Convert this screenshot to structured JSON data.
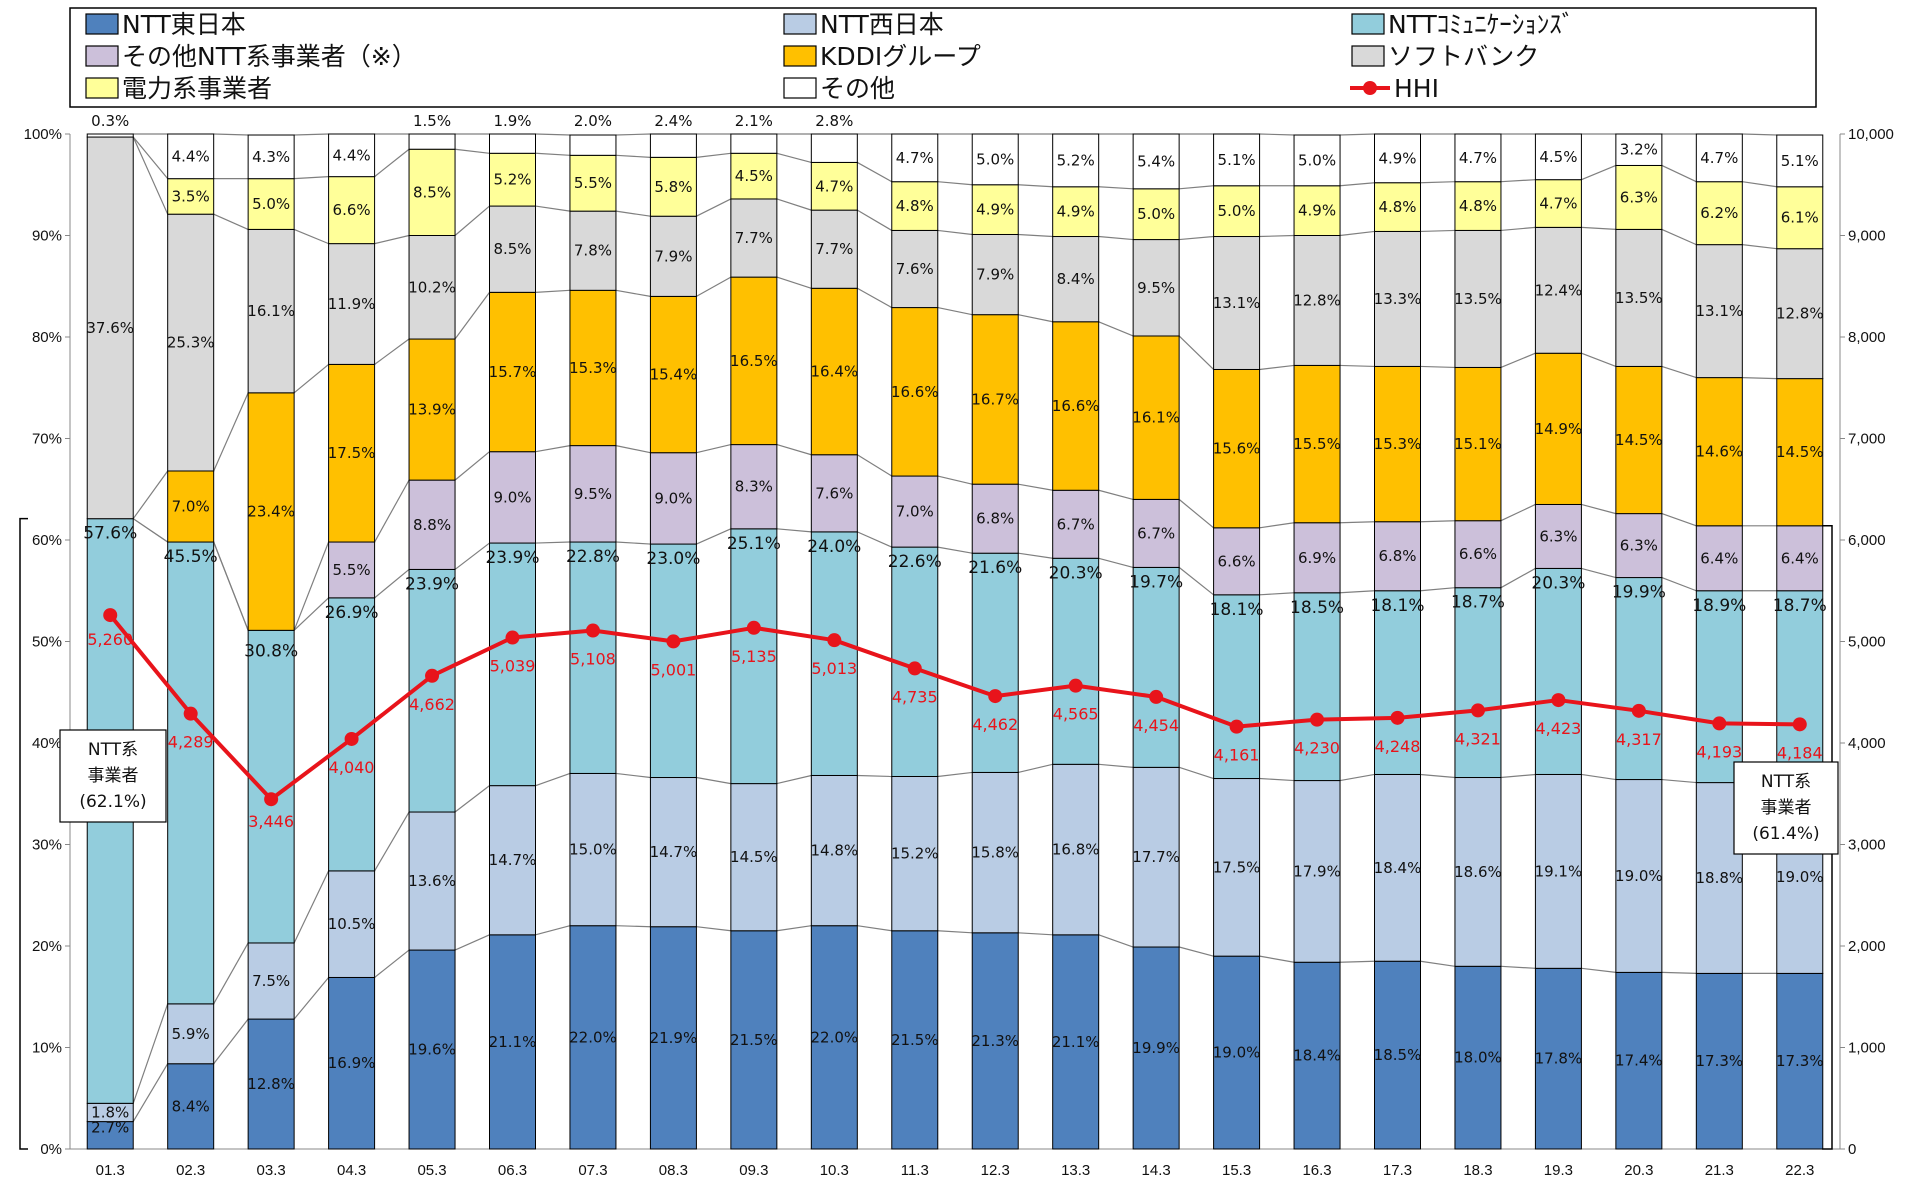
{
  "chart_data": {
    "type": "bar",
    "stacked": true,
    "categories": [
      "01.3",
      "02.3",
      "03.3",
      "04.3",
      "05.3",
      "06.3",
      "07.3",
      "08.3",
      "09.3",
      "10.3",
      "11.3",
      "12.3",
      "13.3",
      "14.3",
      "15.3",
      "16.3",
      "17.3",
      "18.3",
      "19.3",
      "20.3",
      "21.3",
      "22.3"
    ],
    "colors": {
      "ntt_east": "#4f81bd",
      "ntt_west": "#b9cce4",
      "ntt_com": "#92cddc",
      "other_ntt": "#ccc0da",
      "kddi": "#ffc000",
      "softbank": "#d9d9d9",
      "power": "#ffff99",
      "other": "#ffffff",
      "hhi": "#e8141b"
    },
    "series": [
      {
        "key": "ntt_east",
        "name": "NTT東日本",
        "values": [
          2.7,
          8.4,
          12.8,
          16.9,
          19.6,
          21.1,
          22.0,
          21.9,
          21.5,
          22.0,
          21.5,
          21.3,
          21.1,
          19.9,
          19.0,
          18.4,
          18.5,
          18.0,
          17.8,
          17.4,
          17.3,
          17.3
        ],
        "labels": [
          "2.7%",
          "8.4%",
          "12.8%",
          "16.9%",
          "19.6%",
          "21.1%",
          "22.0%",
          "21.9%",
          "21.5%",
          "22.0%",
          "21.5%",
          "21.3%",
          "21.1%",
          "19.9%",
          "19.0%",
          "18.4%",
          "18.5%",
          "18.0%",
          "17.8%",
          "17.4%",
          "17.3%",
          "17.3%"
        ]
      },
      {
        "key": "ntt_west",
        "name": "NTT西日本",
        "values": [
          1.8,
          5.9,
          7.5,
          10.5,
          13.6,
          14.7,
          15.0,
          14.7,
          14.5,
          14.8,
          15.2,
          15.8,
          16.8,
          17.7,
          17.5,
          17.9,
          18.4,
          18.6,
          19.1,
          19.0,
          18.8,
          19.0
        ],
        "labels": [
          "1.8%",
          "5.9%",
          "7.5%",
          "10.5%",
          "13.6%",
          "14.7%",
          "15.0%",
          "14.7%",
          "14.5%",
          "14.8%",
          "15.2%",
          "15.8%",
          "16.8%",
          "17.7%",
          "17.5%",
          "17.9%",
          "18.4%",
          "18.6%",
          "19.1%",
          "19.0%",
          "18.8%",
          "19.0%"
        ]
      },
      {
        "key": "ntt_com",
        "name": "NTTｺﾐｭﾆｹｰｼｮﾝｽﾞ",
        "values": [
          57.6,
          45.5,
          30.8,
          26.9,
          23.9,
          23.9,
          22.8,
          23.0,
          25.1,
          24.0,
          22.6,
          21.6,
          20.3,
          19.7,
          18.1,
          18.5,
          18.1,
          18.7,
          20.3,
          19.9,
          18.9,
          18.7
        ],
        "labels": [
          "57.6%",
          "45.5%",
          "30.8%",
          "26.9%",
          "23.9%",
          "23.9%",
          "22.8%",
          "23.0%",
          "25.1%",
          "24.0%",
          "22.6%",
          "21.6%",
          "20.3%",
          "19.7%",
          "18.1%",
          "18.5%",
          "18.1%",
          "18.7%",
          "20.3%",
          "19.9%",
          "18.9%",
          "18.7%"
        ]
      },
      {
        "key": "other_ntt",
        "name": "その他NTT系事業者（※）",
        "values": [
          0,
          0,
          0,
          5.5,
          8.8,
          9.0,
          9.5,
          9.0,
          8.3,
          7.6,
          7.0,
          6.8,
          6.7,
          6.7,
          6.6,
          6.9,
          6.8,
          6.6,
          6.3,
          6.3,
          6.4,
          6.4
        ],
        "labels": [
          "",
          "",
          "",
          "5.5%",
          "8.8%",
          "9.0%",
          "9.5%",
          "9.0%",
          "8.3%",
          "7.6%",
          "7.0%",
          "6.8%",
          "6.7%",
          "6.7%",
          "6.6%",
          "6.9%",
          "6.8%",
          "6.6%",
          "6.3%",
          "6.3%",
          "6.4%",
          "6.4%"
        ]
      },
      {
        "key": "kddi",
        "name": "KDDIグループ",
        "values": [
          0,
          7.0,
          23.4,
          17.5,
          13.9,
          15.7,
          15.3,
          15.4,
          16.5,
          16.4,
          16.6,
          16.7,
          16.6,
          16.1,
          15.6,
          15.5,
          15.3,
          15.1,
          14.9,
          14.5,
          14.6,
          14.5
        ],
        "labels": [
          "",
          "7.0%",
          "23.4%",
          "17.5%",
          "13.9%",
          "15.7%",
          "15.3%",
          "15.4%",
          "16.5%",
          "16.4%",
          "16.6%",
          "16.7%",
          "16.6%",
          "16.1%",
          "15.6%",
          "15.5%",
          "15.3%",
          "15.1%",
          "14.9%",
          "14.5%",
          "14.6%",
          "14.5%"
        ]
      },
      {
        "key": "softbank",
        "name": "ソフトバンク",
        "values": [
          37.6,
          25.3,
          16.1,
          11.9,
          10.2,
          8.5,
          7.8,
          7.9,
          7.7,
          7.7,
          7.6,
          7.9,
          8.4,
          9.5,
          13.1,
          12.8,
          13.3,
          13.5,
          12.4,
          13.5,
          13.1,
          12.8
        ],
        "labels": [
          "37.6%",
          "25.3%",
          "16.1%",
          "11.9%",
          "10.2%",
          "8.5%",
          "7.8%",
          "7.9%",
          "7.7%",
          "7.7%",
          "7.6%",
          "7.9%",
          "8.4%",
          "9.5%",
          "13.1%",
          "12.8%",
          "13.3%",
          "13.5%",
          "12.4%",
          "13.5%",
          "13.1%",
          "12.8%"
        ]
      },
      {
        "key": "power",
        "name": "電力系事業者",
        "values": [
          0,
          3.5,
          5.0,
          6.6,
          8.5,
          5.2,
          5.5,
          5.8,
          4.5,
          4.7,
          4.8,
          4.9,
          4.9,
          5.0,
          5.0,
          4.9,
          4.8,
          4.8,
          4.7,
          6.3,
          6.2,
          6.1
        ],
        "labels": [
          "",
          "3.5%",
          "5.0%",
          "6.6%",
          "8.5%",
          "5.2%",
          "5.5%",
          "5.8%",
          "4.5%",
          "4.7%",
          "4.8%",
          "4.9%",
          "4.9%",
          "5.0%",
          "5.0%",
          "4.9%",
          "4.8%",
          "4.8%",
          "4.7%",
          "6.3%",
          "6.2%",
          "6.1%"
        ]
      },
      {
        "key": "other",
        "name": "その他",
        "values": [
          0.3,
          4.4,
          4.3,
          4.4,
          1.5,
          1.9,
          2.0,
          2.4,
          2.1,
          2.8,
          4.7,
          5.0,
          5.2,
          5.4,
          5.1,
          5.0,
          4.9,
          4.7,
          4.5,
          3.2,
          4.7,
          5.1
        ],
        "labels": [
          "0.3%",
          "4.4%",
          "4.3%",
          "4.4%",
          "1.5%",
          "1.9%",
          "2.0%",
          "2.4%",
          "2.1%",
          "2.8%",
          "4.7%",
          "5.0%",
          "5.2%",
          "5.4%",
          "5.1%",
          "5.0%",
          "4.9%",
          "4.7%",
          "4.5%",
          "3.2%",
          "4.7%",
          "5.1%"
        ]
      }
    ],
    "hhi": {
      "name": "HHI",
      "values": [
        5260,
        4289,
        3446,
        4040,
        4662,
        5039,
        5108,
        5001,
        5135,
        5013,
        4735,
        4462,
        4565,
        4454,
        4161,
        4230,
        4248,
        4321,
        4423,
        4317,
        4193,
        4184
      ],
      "labels": [
        "5,260",
        "4,289",
        "3,446",
        "4,040",
        "4,662",
        "5,039",
        "5,108",
        "5,001",
        "5,135",
        "5,013",
        "4,735",
        "4,462",
        "4,565",
        "4,454",
        "4,161",
        "4,230",
        "4,248",
        "4,321",
        "4,423",
        "4,317",
        "4,193",
        "4,184"
      ]
    },
    "y_left": {
      "ylim": [
        0,
        100
      ],
      "ticks": [
        "0%",
        "10%",
        "20%",
        "30%",
        "40%",
        "50%",
        "60%",
        "70%",
        "80%",
        "90%",
        "100%"
      ]
    },
    "y_right": {
      "ylim": [
        0,
        10000
      ],
      "ticks": [
        "0",
        "1,000",
        "2,000",
        "3,000",
        "4,000",
        "5,000",
        "6,000",
        "7,000",
        "8,000",
        "9,000",
        "10,000"
      ]
    },
    "legend": {
      "placement": "top",
      "items": [
        {
          "key": "ntt_east",
          "label": "NTT東日本"
        },
        {
          "key": "ntt_west",
          "label": "NTT西日本"
        },
        {
          "key": "ntt_com",
          "label": "NTTｺﾐｭﾆｹｰｼｮﾝｽﾞ"
        },
        {
          "key": "other_ntt",
          "label": "その他NTT系事業者（※）"
        },
        {
          "key": "kddi",
          "label": "KDDIグループ"
        },
        {
          "key": "softbank",
          "label": "ソフトバンク"
        },
        {
          "key": "power",
          "label": "電力系事業者"
        },
        {
          "key": "other",
          "label": "その他"
        },
        {
          "key": "hhi",
          "label": "HHI"
        }
      ]
    },
    "annotations": {
      "left": [
        "NTT系",
        "事業者",
        "(62.1%)"
      ],
      "right": [
        "NTT系",
        "事業者",
        "(61.4%)"
      ]
    },
    "grid": false
  }
}
